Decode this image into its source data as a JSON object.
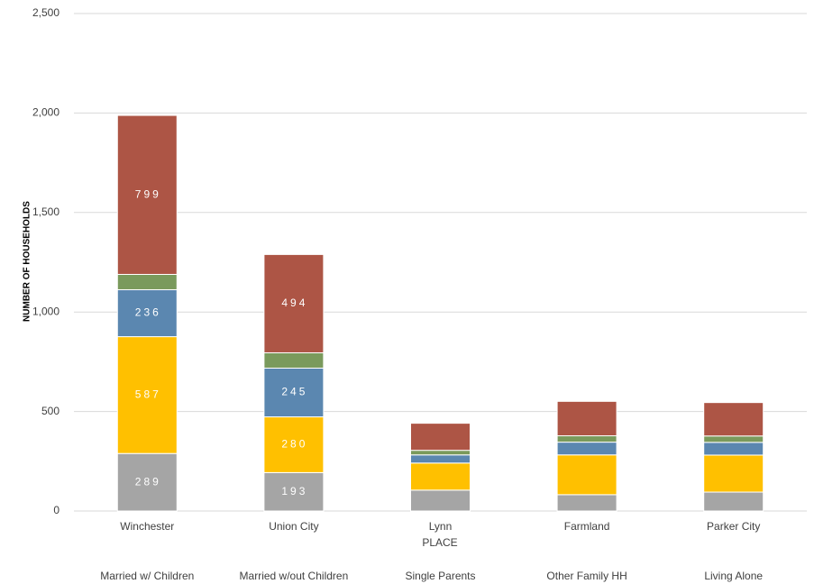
{
  "chart_data": {
    "type": "stacked_bar",
    "x_label": "PLACE",
    "y_label": "NUMBER OF HOUSEHOLDS",
    "categories": [
      "Winchester",
      "Union City",
      "Lynn",
      "Farmland",
      "Parker City"
    ],
    "series": [
      {
        "name": "Married w/ Children",
        "color": "#a5a5a5",
        "values": [
          289,
          193,
          105,
          82,
          95
        ],
        "value_labels": [
          "289",
          "193",
          null,
          null,
          null
        ]
      },
      {
        "name": "Married w/out Children",
        "color": "#ffc000",
        "values": [
          587,
          280,
          136,
          200,
          186
        ],
        "value_labels": [
          "587",
          "280",
          null,
          null,
          null
        ]
      },
      {
        "name": "Single Parents",
        "color": "#5b87b0",
        "values": [
          236,
          245,
          41,
          64,
          64
        ],
        "value_labels": [
          "236",
          "245",
          null,
          null,
          null
        ]
      },
      {
        "name": "Other Family HH",
        "color": "#7a9a5c",
        "values": [
          77,
          77,
          23,
          32,
          32
        ],
        "value_labels": [
          null,
          null,
          null,
          null,
          null
        ]
      },
      {
        "name": "Living Alone",
        "color": "#ad5545",
        "values": [
          799,
          494,
          136,
          173,
          168
        ],
        "value_labels": [
          "799",
          "494",
          null,
          null,
          null
        ]
      }
    ],
    "ylim": [
      0,
      2500
    ],
    "yticks": [
      0,
      500,
      {
        "value": 1000,
        "label": "1,000"
      },
      {
        "value": 1500,
        "label": "1,500"
      },
      {
        "value": 2000,
        "label": "2,000"
      },
      {
        "value": 2500,
        "label": "2,500"
      }
    ],
    "grid": true
  }
}
